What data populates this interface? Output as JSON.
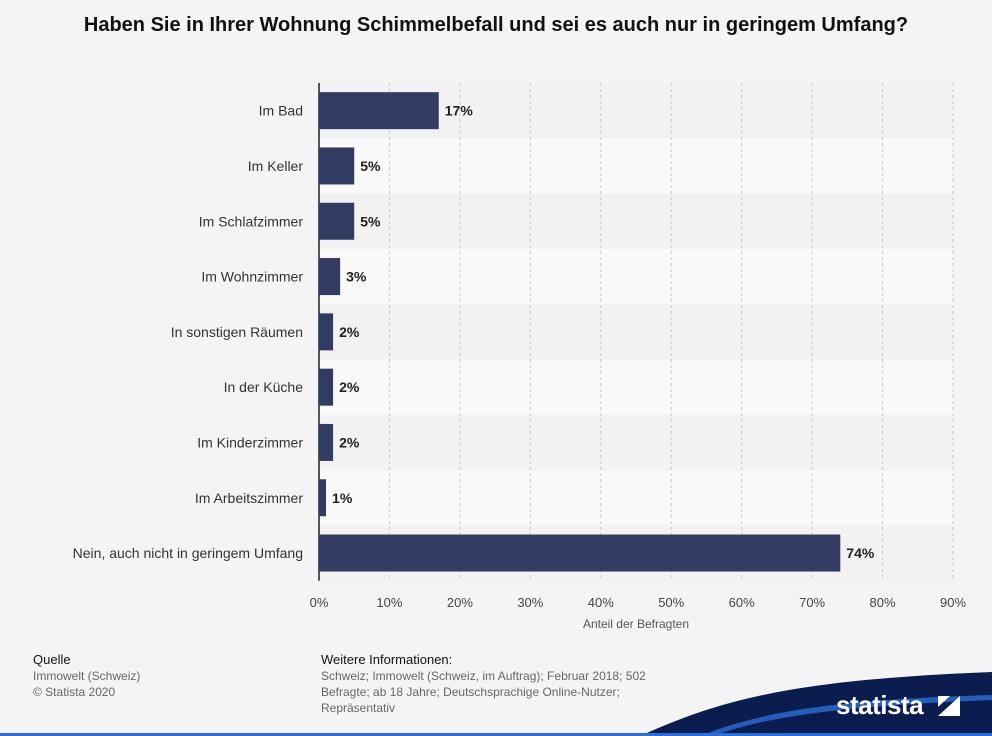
{
  "chart_data": {
    "type": "bar",
    "orientation": "horizontal",
    "title": "Haben Sie in Ihrer Wohnung Schimmelbefall und sei es auch nur in geringem Umfang?",
    "categories": [
      "Im Bad",
      "Im Keller",
      "Im Schlafzimmer",
      "Im Wohnzimmer",
      "In sonstigen Räumen",
      "In der Küche",
      "Im Kinderzimmer",
      "Im Arbeitszimmer",
      "Nein, auch nicht in geringem Umfang"
    ],
    "values": [
      17,
      5,
      5,
      3,
      2,
      2,
      2,
      1,
      74
    ],
    "value_labels": [
      "17%",
      "5%",
      "5%",
      "3%",
      "2%",
      "2%",
      "2%",
      "1%",
      "74%"
    ],
    "xlabel": "Anteil der Befragten",
    "ylabel": "",
    "xlim": [
      0,
      90
    ],
    "ticks": [
      0,
      10,
      20,
      30,
      40,
      50,
      60,
      70,
      80,
      90
    ],
    "tick_labels": [
      "0%",
      "10%",
      "20%",
      "30%",
      "40%",
      "50%",
      "60%",
      "70%",
      "80%",
      "90%"
    ],
    "grid": true,
    "bar_color": "#323b62"
  },
  "footer": {
    "source_heading": "Quelle",
    "source_lines": [
      "Immowelt (Schweiz)",
      "© Statista 2020"
    ],
    "info_heading": "Weitere Informationen:",
    "info_lines": [
      "Schweiz; Immowelt (Schweiz, im Auftrag); Februar 2018; 502",
      "Befragte; ab 18 Jahre; Deutschsprachige Online-Nutzer;",
      "Repräsentativ"
    ]
  },
  "brand": {
    "name": "statista",
    "color": "#0b1d4e"
  }
}
